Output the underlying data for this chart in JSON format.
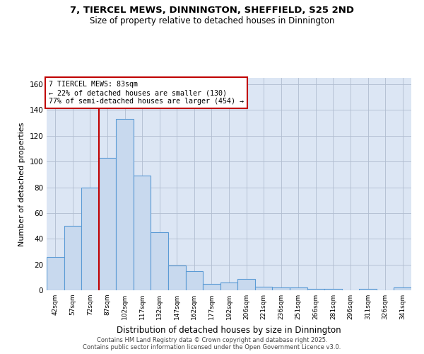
{
  "title_line1": "7, TIERCEL MEWS, DINNINGTON, SHEFFIELD, S25 2ND",
  "title_line2": "Size of property relative to detached houses in Dinnington",
  "xlabel": "Distribution of detached houses by size in Dinnington",
  "ylabel": "Number of detached properties",
  "categories": [
    "42sqm",
    "57sqm",
    "72sqm",
    "87sqm",
    "102sqm",
    "117sqm",
    "132sqm",
    "147sqm",
    "162sqm",
    "177sqm",
    "192sqm",
    "206sqm",
    "221sqm",
    "236sqm",
    "251sqm",
    "266sqm",
    "281sqm",
    "296sqm",
    "311sqm",
    "326sqm",
    "341sqm"
  ],
  "values": [
    26,
    50,
    80,
    103,
    133,
    89,
    45,
    19,
    15,
    5,
    6,
    9,
    3,
    2,
    2,
    1,
    1,
    0,
    1,
    0,
    2
  ],
  "bar_color": "#c8d9ee",
  "bar_edge_color": "#5b9bd5",
  "vline_color": "#c00000",
  "vline_xindex": 3,
  "annotation_text": "7 TIERCEL MEWS: 83sqm\n← 22% of detached houses are smaller (130)\n77% of semi-detached houses are larger (454) →",
  "annotation_box_color": "#ffffff",
  "annotation_box_edge_color": "#c00000",
  "ylim": [
    0,
    165
  ],
  "yticks": [
    0,
    20,
    40,
    60,
    80,
    100,
    120,
    140,
    160
  ],
  "background_color": "#dce6f4",
  "footer_line1": "Contains HM Land Registry data © Crown copyright and database right 2025.",
  "footer_line2": "Contains public sector information licensed under the Open Government Licence v3.0."
}
